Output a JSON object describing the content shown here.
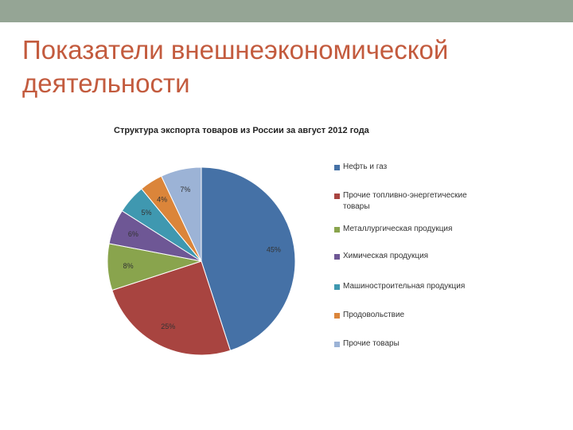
{
  "slide": {
    "title": "Показатели внешнеэкономической деятельности"
  },
  "chart_data": {
    "type": "pie",
    "title": "Структура экспорта товаров из России за август 2012 года",
    "legend_position": "right",
    "slices": [
      {
        "name": "Нефть и газ",
        "value": 45,
        "label": "45%",
        "color": "#4571a6"
      },
      {
        "name": "Прочие топливно-энергетические товары",
        "value": 25,
        "label": "25%",
        "color": "#a84440"
      },
      {
        "name": "Металлургическая продукция",
        "value": 8,
        "label": "8%",
        "color": "#89a44d"
      },
      {
        "name": "Химическая продукция",
        "value": 6,
        "label": "6%",
        "color": "#6e5795"
      },
      {
        "name": "Машиностроительная продукция",
        "value": 5,
        "label": "5%",
        "color": "#3f98b0"
      },
      {
        "name": "Продовольствие",
        "value": 4,
        "label": "4%",
        "color": "#db853a"
      },
      {
        "name": "Прочие товары",
        "value": 7,
        "label": "7%",
        "color": "#9cb3d6"
      }
    ]
  }
}
